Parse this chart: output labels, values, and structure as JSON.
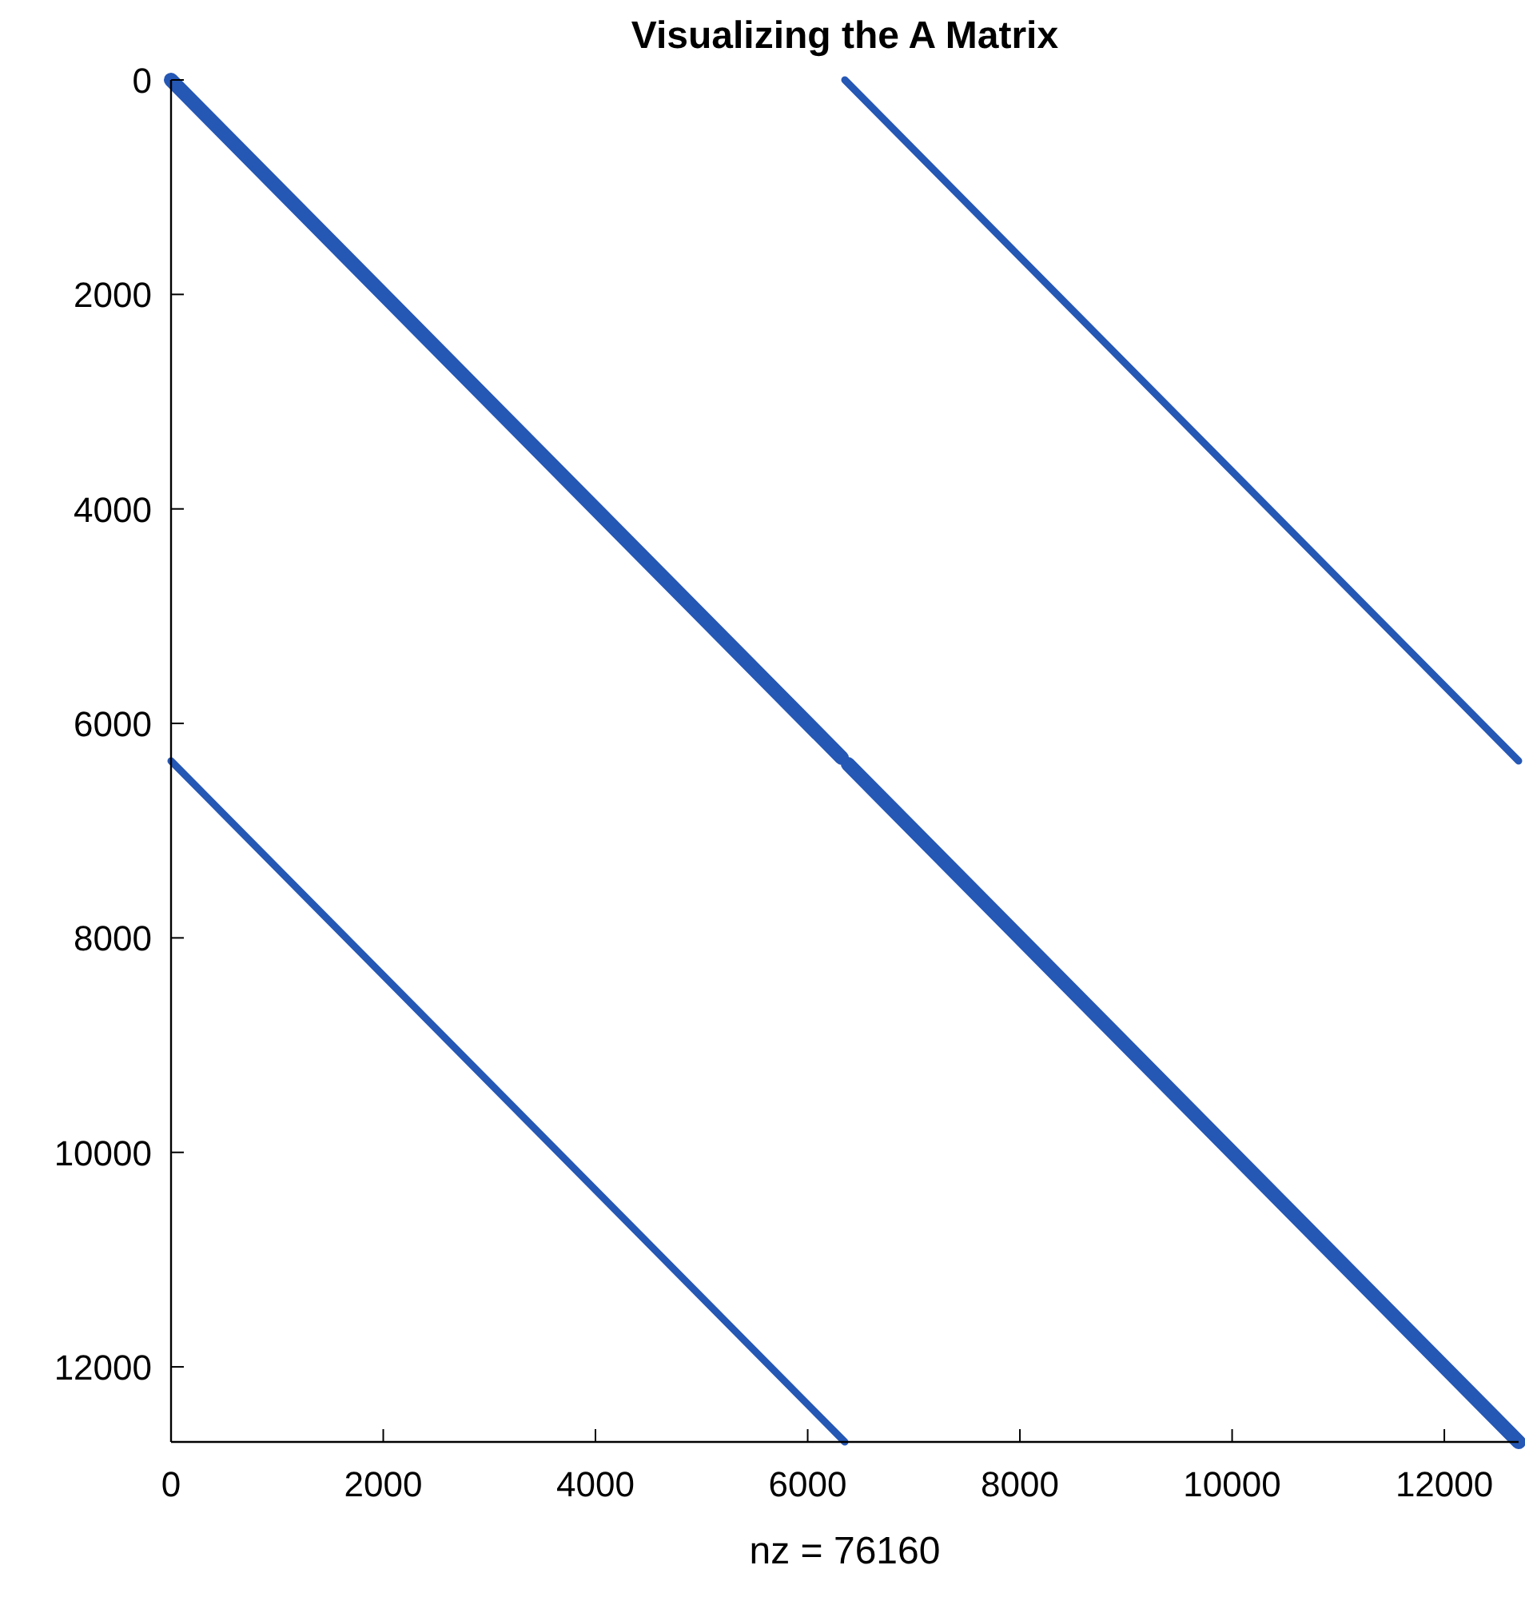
{
  "chart_data": {
    "type": "line",
    "title": "Visualizing the A Matrix",
    "xlabel": "nz = 76160",
    "xlim": [
      0,
      12700
    ],
    "ylim": [
      12700,
      0
    ],
    "xticks": [
      0,
      2000,
      4000,
      6000,
      8000,
      10000,
      12000
    ],
    "yticks": [
      0,
      2000,
      4000,
      6000,
      8000,
      10000,
      12000
    ],
    "grid": false,
    "marker": "none",
    "line_style": "solid",
    "series": [
      {
        "color": "#2557b5",
        "x": [
          0,
          6320,
          null,
          6380,
          12700
        ],
        "values": [
          0,
          6320,
          null,
          6380,
          12700
        ]
      },
      {
        "color": "#2557b5",
        "x": [
          6350,
          12700
        ],
        "values": [
          0,
          6350
        ]
      },
      {
        "color": "#2557b5",
        "x": [
          0,
          6350
        ],
        "values": [
          6350,
          12700
        ]
      }
    ]
  }
}
